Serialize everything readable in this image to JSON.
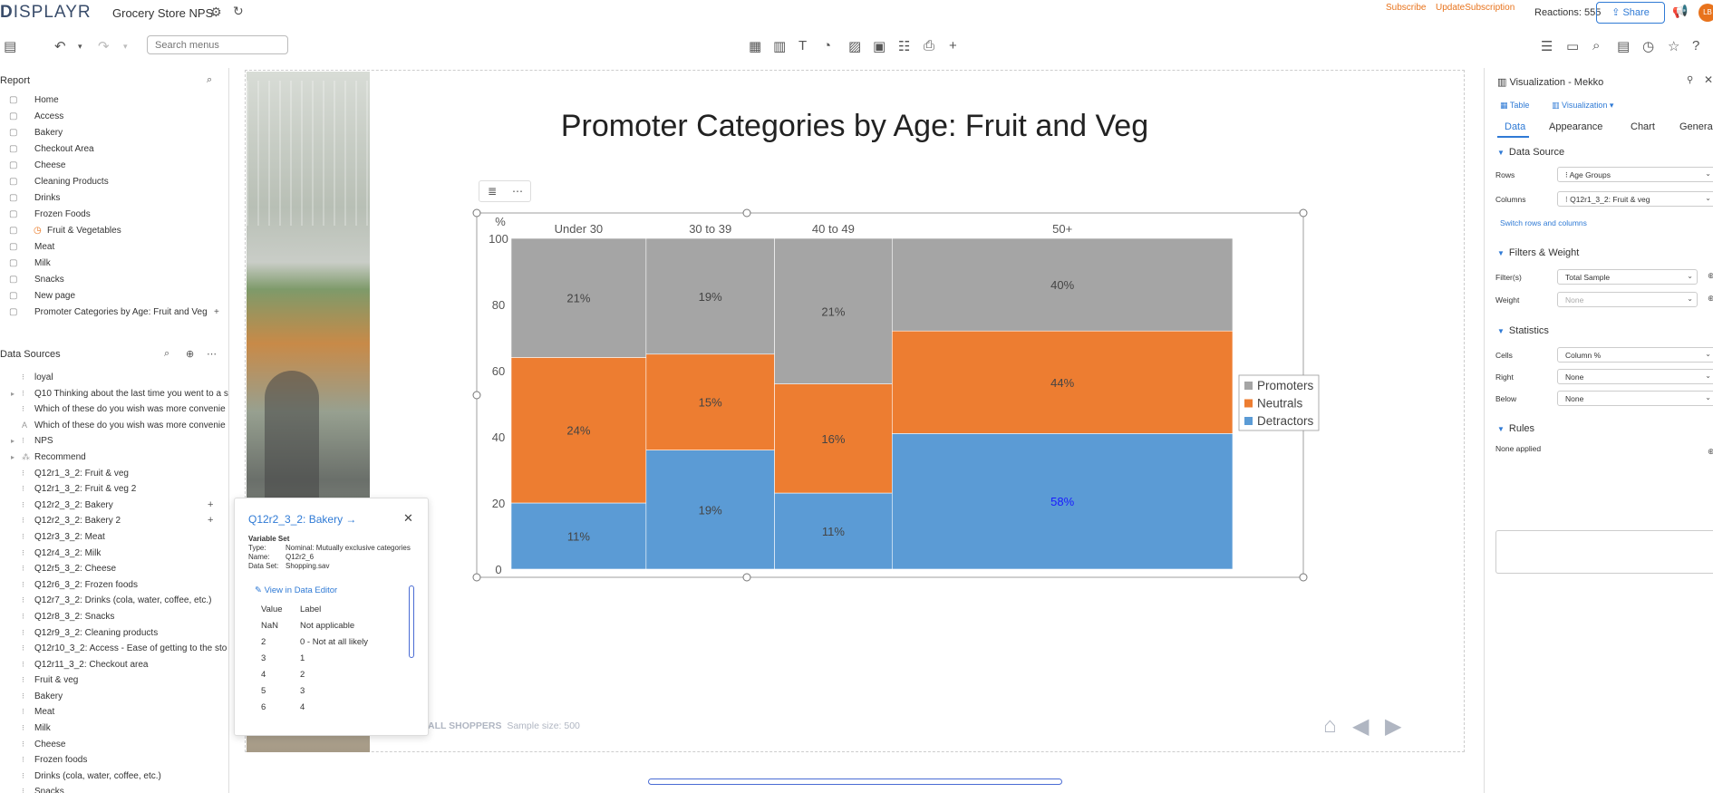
{
  "header": {
    "logo_text": "ISPLAYR",
    "logo_prefix": "D",
    "document_title": "Grocery Store NPS",
    "subscribe_label": "Subscribe",
    "update_subscription_label": "UpdateSubscription",
    "reactions": "Reactions: 555",
    "share_label": "Share",
    "avatar_initials": "LB"
  },
  "toolbar": {
    "search_placeholder": "Search menus"
  },
  "report": {
    "heading": "Report",
    "pages": [
      {
        "label": "Home"
      },
      {
        "label": "Access"
      },
      {
        "label": "Bakery"
      },
      {
        "label": "Checkout Area"
      },
      {
        "label": "Cheese"
      },
      {
        "label": "Cleaning Products"
      },
      {
        "label": "Drinks"
      },
      {
        "label": "Frozen Foods"
      },
      {
        "label": "Fruit & Vegetables"
      },
      {
        "label": "Meat"
      },
      {
        "label": "Milk"
      },
      {
        "label": "Snacks"
      },
      {
        "label": "New page"
      },
      {
        "label": "Promoter Categories by Age: Fruit and Veg"
      }
    ]
  },
  "data_sources": {
    "heading": "Data Sources",
    "items": [
      {
        "label": "loyal"
      },
      {
        "label": "Q10 Thinking about the last time you went to a s"
      },
      {
        "label": "Which of these do you wish was more convenie"
      },
      {
        "label": "Which of these do you wish was more convenie"
      },
      {
        "label": "NPS"
      },
      {
        "label": "Recommend"
      },
      {
        "label": "Q12r1_3_2: Fruit & veg"
      },
      {
        "label": "Q12r1_3_2: Fruit & veg 2"
      },
      {
        "label": "Q12r2_3_2: Bakery"
      },
      {
        "label": "Q12r2_3_2: Bakery 2"
      },
      {
        "label": "Q12r3_3_2: Meat"
      },
      {
        "label": "Q12r4_3_2: Milk"
      },
      {
        "label": "Q12r5_3_2: Cheese"
      },
      {
        "label": "Q12r6_3_2: Frozen foods"
      },
      {
        "label": "Q12r7_3_2: Drinks (cola, water, coffee, etc.)"
      },
      {
        "label": "Q12r8_3_2: Snacks"
      },
      {
        "label": "Q12r9_3_2: Cleaning products"
      },
      {
        "label": "Q12r10_3_2: Access - Ease of getting to the sto"
      },
      {
        "label": "Q12r11_3_2: Checkout area"
      },
      {
        "label": "Fruit & veg"
      },
      {
        "label": "Bakery"
      },
      {
        "label": "Meat"
      },
      {
        "label": "Milk"
      },
      {
        "label": "Cheese"
      },
      {
        "label": "Frozen foods"
      },
      {
        "label": "Drinks (cola, water, coffee, etc.)"
      },
      {
        "label": "Snacks"
      }
    ]
  },
  "info_card": {
    "title": "Q12r2_3_2: Bakery",
    "section": "Variable Set",
    "type_key": "Type:",
    "type_val": "Nominal: Mutually exclusive categories",
    "name_key": "Name:",
    "name_val": "Q12r2_6",
    "dataset_key": "Data Set:",
    "dataset_val": "Shopping.sav",
    "view_link": "View in Data Editor",
    "col_value": "Value",
    "col_label": "Label",
    "rows": [
      {
        "value": "NaN",
        "label": "Not applicable"
      },
      {
        "value": "2",
        "label": "0 - Not at all likely"
      },
      {
        "value": "3",
        "label": "1"
      },
      {
        "value": "4",
        "label": "2"
      },
      {
        "value": "5",
        "label": "3"
      },
      {
        "value": "6",
        "label": "4"
      }
    ]
  },
  "page": {
    "title": "Promoter Categories by Age: Fruit and Veg",
    "footer_bold": "ALL SHOPPERS",
    "footer_rest": "Sample size: 500"
  },
  "chart_data": {
    "type": "bar",
    "subtype": "mekko",
    "title": "Promoter Categories by Age: Fruit and Veg",
    "ylabel": "%",
    "ylim": [
      0,
      100
    ],
    "yticks": [
      "0",
      "20",
      "40",
      "60",
      "80",
      "100"
    ],
    "categories": [
      "Under 30",
      "30 to 39",
      "40 to 49",
      "50+"
    ],
    "widths": [
      0.187,
      0.178,
      0.163,
      0.472
    ],
    "series": [
      {
        "name": "Detractors",
        "color": "#5b9bd5",
        "values": [
          20,
          36,
          23,
          41
        ],
        "labels": [
          "11%",
          "19%",
          "11%",
          "58%"
        ]
      },
      {
        "name": "Neutrals",
        "color": "#ed7d31",
        "values": [
          44,
          29,
          33,
          31
        ],
        "labels": [
          "24%",
          "15%",
          "16%",
          "44%"
        ]
      },
      {
        "name": "Promoters",
        "color": "#a5a5a5",
        "values": [
          36,
          35,
          44,
          28
        ],
        "labels": [
          "21%",
          "19%",
          "21%",
          "40%"
        ]
      }
    ],
    "legend_order": [
      "Promoters",
      "Neutrals",
      "Detractors"
    ],
    "legend_position": "right",
    "highlight_label_color": "#1a1aff"
  },
  "viz_panel": {
    "title": "Visualization - Mekko",
    "subtab_table": "Table",
    "subtab_viz": "Visualization",
    "tabs": [
      "Data",
      "Appearance",
      "Chart",
      "General"
    ],
    "data_source_heading": "Data Source",
    "rows_label": "Rows",
    "rows_value": "Age Groups",
    "columns_label": "Columns",
    "columns_value": "Q12r1_3_2: Fruit & veg",
    "switch_link": "Switch rows and columns",
    "filters_heading": "Filters & Weight",
    "filters_label": "Filter(s)",
    "filters_value": "Total Sample",
    "weight_label": "Weight",
    "weight_value": "None",
    "stats_heading": "Statistics",
    "cells_label": "Cells",
    "cells_value": "Column %",
    "right_label": "Right",
    "right_value": "None",
    "below_label": "Below",
    "below_value": "None",
    "rules_heading": "Rules",
    "rules_note": "None applied"
  }
}
